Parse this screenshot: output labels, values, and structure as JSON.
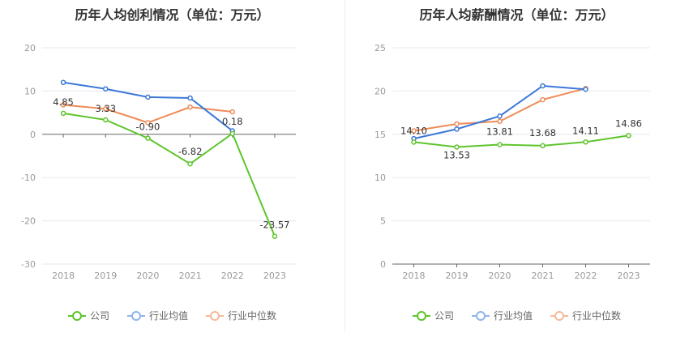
{
  "chart_data": [
    {
      "type": "line",
      "title": "历年人均创利情况（单位：万元）",
      "categories": [
        "2018",
        "2019",
        "2020",
        "2021",
        "2022",
        "2023"
      ],
      "ylim": [
        -30,
        20
      ],
      "yticks": [
        20,
        10,
        0,
        -10,
        -20,
        -30
      ],
      "grid": true,
      "legend_position": "bottom",
      "series": [
        {
          "name": "公司",
          "color": "#5ec52c",
          "values": [
            4.85,
            3.33,
            -0.9,
            -6.82,
            0.18,
            -23.57
          ],
          "labels": [
            "4.85",
            "3.33",
            "-0.90",
            "-6.82",
            "0.18",
            "-23.57"
          ]
        },
        {
          "name": "行业均值",
          "color": "#3c78d8",
          "values": [
            12.0,
            10.5,
            8.6,
            8.4,
            0.8,
            null
          ]
        },
        {
          "name": "行业中位数",
          "color": "#ef8c58",
          "values": [
            6.8,
            5.9,
            2.7,
            6.3,
            5.2,
            null
          ]
        }
      ]
    },
    {
      "type": "line",
      "title": "历年人均薪酬情况（单位：万元）",
      "categories": [
        "2018",
        "2019",
        "2020",
        "2021",
        "2022",
        "2023"
      ],
      "ylim": [
        0,
        25
      ],
      "yticks": [
        25,
        20,
        15,
        10,
        5,
        0
      ],
      "grid": true,
      "legend_position": "bottom",
      "series": [
        {
          "name": "公司",
          "color": "#5ec52c",
          "values": [
            14.1,
            13.53,
            13.81,
            13.68,
            14.11,
            14.86
          ],
          "labels": [
            "14.10",
            "13.53",
            "13.81",
            "13.68",
            "14.11",
            "14.86"
          ]
        },
        {
          "name": "行业均值",
          "color": "#3c78d8",
          "values": [
            14.5,
            15.6,
            17.1,
            20.6,
            20.2,
            null
          ]
        },
        {
          "name": "行业中位数",
          "color": "#ef8c58",
          "values": [
            15.4,
            16.2,
            16.5,
            19.0,
            20.3,
            null
          ]
        }
      ]
    }
  ],
  "legend": [
    {
      "label": "公司",
      "color": "#5ec52c"
    },
    {
      "label": "行业均值",
      "color": "#8fb4ea"
    },
    {
      "label": "行业中位数",
      "color": "#f5b99b"
    }
  ]
}
